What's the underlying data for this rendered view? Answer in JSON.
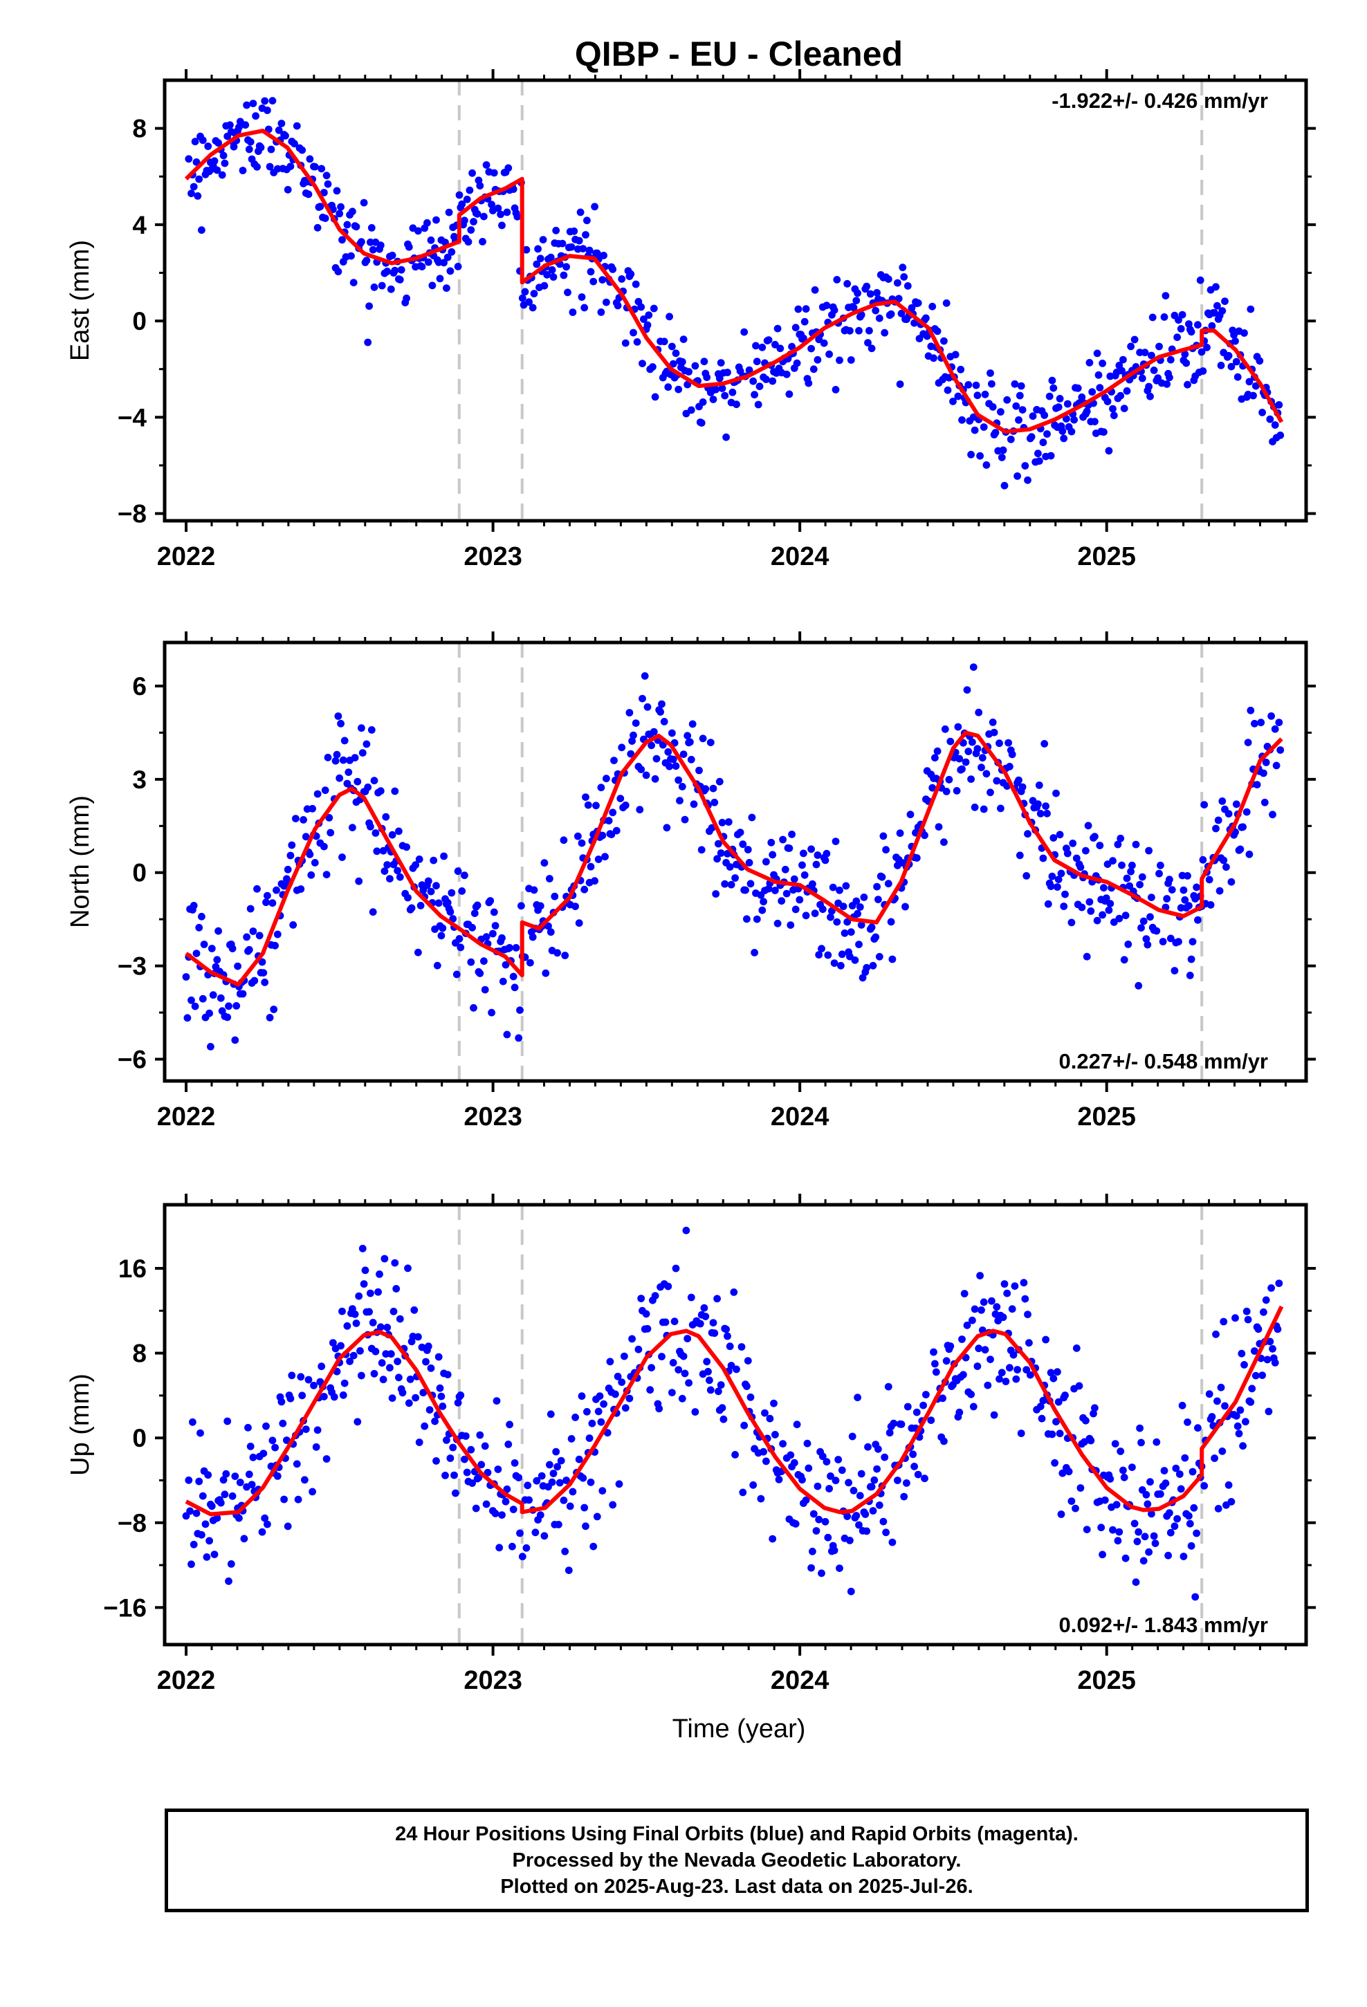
{
  "chart_data": {
    "type": "scatter",
    "title": "QIBP  - EU - Cleaned",
    "xlabel": "Time (year)",
    "x_ticks": [
      2022,
      2023,
      2024,
      2025
    ],
    "xlim": [
      2021.93,
      2025.65
    ],
    "offset_lines": [
      2022.89,
      2023.095,
      2025.31
    ],
    "colors": {
      "points": "#0000ff",
      "model": "#ff0000",
      "offset_lines": "#c8c8c8",
      "axes": "#000000"
    },
    "panels": [
      {
        "name": "east",
        "ylabel": "East (mm)",
        "ylim": [
          -8.3,
          10
        ],
        "y_ticks": [
          -8,
          -4,
          0,
          4,
          8
        ],
        "rate": "-1.922+/- 0.426 mm/yr",
        "rate_position": "top-right",
        "model_x": [
          2022.0,
          2022.08,
          2022.17,
          2022.25,
          2022.33,
          2022.42,
          2022.5,
          2022.58,
          2022.67,
          2022.75,
          2022.83,
          2022.89,
          2022.89,
          2022.96,
          2023.04,
          2023.095,
          2023.095,
          2023.17,
          2023.25,
          2023.33,
          2023.42,
          2023.5,
          2023.58,
          2023.67,
          2023.75,
          2023.83,
          2023.92,
          2024.0,
          2024.08,
          2024.17,
          2024.25,
          2024.31,
          2024.42,
          2024.5,
          2024.58,
          2024.67,
          2024.75,
          2024.83,
          2024.92,
          2025.0,
          2025.08,
          2025.17,
          2025.25,
          2025.31,
          2025.31,
          2025.35,
          2025.42,
          2025.5,
          2025.57
        ],
        "model_y": [
          5.9,
          6.9,
          7.7,
          7.9,
          7.2,
          5.6,
          3.8,
          2.8,
          2.4,
          2.6,
          3.0,
          3.3,
          4.4,
          5.1,
          5.5,
          5.9,
          1.6,
          2.3,
          2.7,
          2.6,
          1.1,
          -0.7,
          -2.0,
          -2.7,
          -2.6,
          -2.3,
          -1.7,
          -1.1,
          -0.3,
          0.3,
          0.7,
          0.8,
          -0.3,
          -2.3,
          -3.9,
          -4.6,
          -4.5,
          -4.1,
          -3.5,
          -2.9,
          -2.2,
          -1.5,
          -1.2,
          -1.0,
          -0.4,
          -0.4,
          -1.2,
          -2.6,
          -4.2
        ]
      },
      {
        "name": "north",
        "ylabel": "North (mm)",
        "ylim": [
          -6.7,
          7.4
        ],
        "y_ticks": [
          -6,
          -3,
          0,
          3,
          6
        ],
        "rate": "0.227+/- 0.548 mm/yr",
        "rate_position": "bottom-right",
        "model_x": [
          2022.0,
          2022.08,
          2022.17,
          2022.25,
          2022.33,
          2022.42,
          2022.5,
          2022.54,
          2022.58,
          2022.67,
          2022.75,
          2022.83,
          2022.89,
          2022.96,
          2023.04,
          2023.095,
          2023.095,
          2023.15,
          2023.25,
          2023.33,
          2023.42,
          2023.5,
          2023.54,
          2023.58,
          2023.67,
          2023.75,
          2023.83,
          2023.92,
          2024.0,
          2024.08,
          2024.17,
          2024.25,
          2024.33,
          2024.42,
          2024.5,
          2024.54,
          2024.58,
          2024.67,
          2024.75,
          2024.83,
          2024.92,
          2025.0,
          2025.08,
          2025.17,
          2025.25,
          2025.31,
          2025.31,
          2025.42,
          2025.5,
          2025.57
        ],
        "model_y": [
          -2.6,
          -3.2,
          -3.6,
          -2.6,
          -0.6,
          1.4,
          2.5,
          2.7,
          2.4,
          0.8,
          -0.6,
          -1.4,
          -1.8,
          -2.3,
          -2.7,
          -3.3,
          -1.6,
          -1.8,
          -0.8,
          1.0,
          3.2,
          4.2,
          4.4,
          4.1,
          2.7,
          1.0,
          0.1,
          -0.3,
          -0.4,
          -0.9,
          -1.5,
          -1.6,
          -0.3,
          2.0,
          4.0,
          4.5,
          4.4,
          3.2,
          1.6,
          0.4,
          -0.1,
          -0.3,
          -0.7,
          -1.2,
          -1.4,
          -1.1,
          -0.2,
          1.6,
          3.6,
          4.3
        ]
      },
      {
        "name": "up",
        "ylabel": "Up (mm)",
        "ylim": [
          -19.5,
          22
        ],
        "y_ticks": [
          -16,
          -8,
          0,
          8,
          16
        ],
        "rate": "0.092+/- 1.843 mm/yr",
        "rate_position": "bottom-right",
        "model_x": [
          2022.0,
          2022.08,
          2022.17,
          2022.25,
          2022.33,
          2022.42,
          2022.5,
          2022.58,
          2022.63,
          2022.67,
          2022.75,
          2022.83,
          2022.89,
          2022.96,
          2023.04,
          2023.095,
          2023.095,
          2023.17,
          2023.25,
          2023.33,
          2023.42,
          2023.5,
          2023.58,
          2023.63,
          2023.67,
          2023.75,
          2023.83,
          2023.92,
          2024.0,
          2024.08,
          2024.13,
          2024.17,
          2024.25,
          2024.33,
          2024.42,
          2024.5,
          2024.58,
          2024.63,
          2024.67,
          2024.75,
          2024.83,
          2024.92,
          2025.0,
          2025.08,
          2025.12,
          2025.17,
          2025.25,
          2025.31,
          2025.31,
          2025.42,
          2025.5,
          2025.57
        ],
        "model_y": [
          -6.0,
          -7.2,
          -7.0,
          -4.7,
          -1.0,
          3.5,
          7.5,
          9.7,
          10.0,
          9.5,
          6.4,
          2.2,
          -0.5,
          -3.3,
          -5.3,
          -6.2,
          -7.0,
          -6.6,
          -4.4,
          -0.8,
          3.6,
          7.6,
          9.8,
          10.1,
          9.6,
          6.6,
          2.4,
          -1.8,
          -4.8,
          -6.6,
          -7.0,
          -6.9,
          -5.3,
          -2.2,
          2.4,
          6.8,
          9.6,
          10.1,
          9.8,
          7.1,
          2.7,
          -1.6,
          -4.7,
          -6.5,
          -6.8,
          -6.7,
          -5.5,
          -3.5,
          -1.0,
          3.4,
          8.2,
          12.4
        ]
      }
    ]
  },
  "footer": {
    "line1": "24 Hour Positions Using Final Orbits (blue) and Rapid Orbits (magenta).",
    "line2": "Processed by the Nevada Geodetic Laboratory.",
    "line3": "Plotted on 2025-Aug-23. Last data on 2025-Jul-26."
  }
}
